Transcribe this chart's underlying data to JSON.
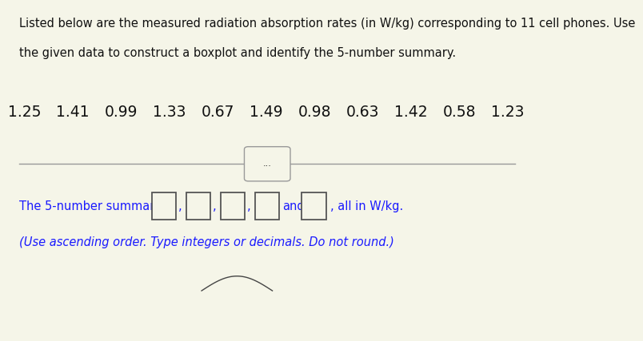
{
  "title_line1": "Listed below are the measured radiation absorption rates (in W/kg) corresponding to 11 cell phones. Use",
  "title_line2": "the given data to construct a boxplot and identify the 5-number summary.",
  "data_labels": [
    "1.25",
    "1.41",
    "0.99",
    "1.33",
    "0.67",
    "1.49",
    "0.98",
    "0.63",
    "1.42",
    "0.58",
    "1.23"
  ],
  "summary_text_1": "The 5-number summary is ",
  "summary_text_3": ", all in W/kg.",
  "summary_text_4": "(Use ascending order. Type integers or decimals. Do not round.)",
  "divider_button_text": "...",
  "bg_color": "#f5f5e8",
  "text_color": "#111111",
  "blue_text_color": "#1a1aff",
  "title_fontsize": 10.5,
  "data_fontsize": 13.5,
  "summary_fontsize": 10.5,
  "line_color": "#999999",
  "box_edge_color": "#555555"
}
